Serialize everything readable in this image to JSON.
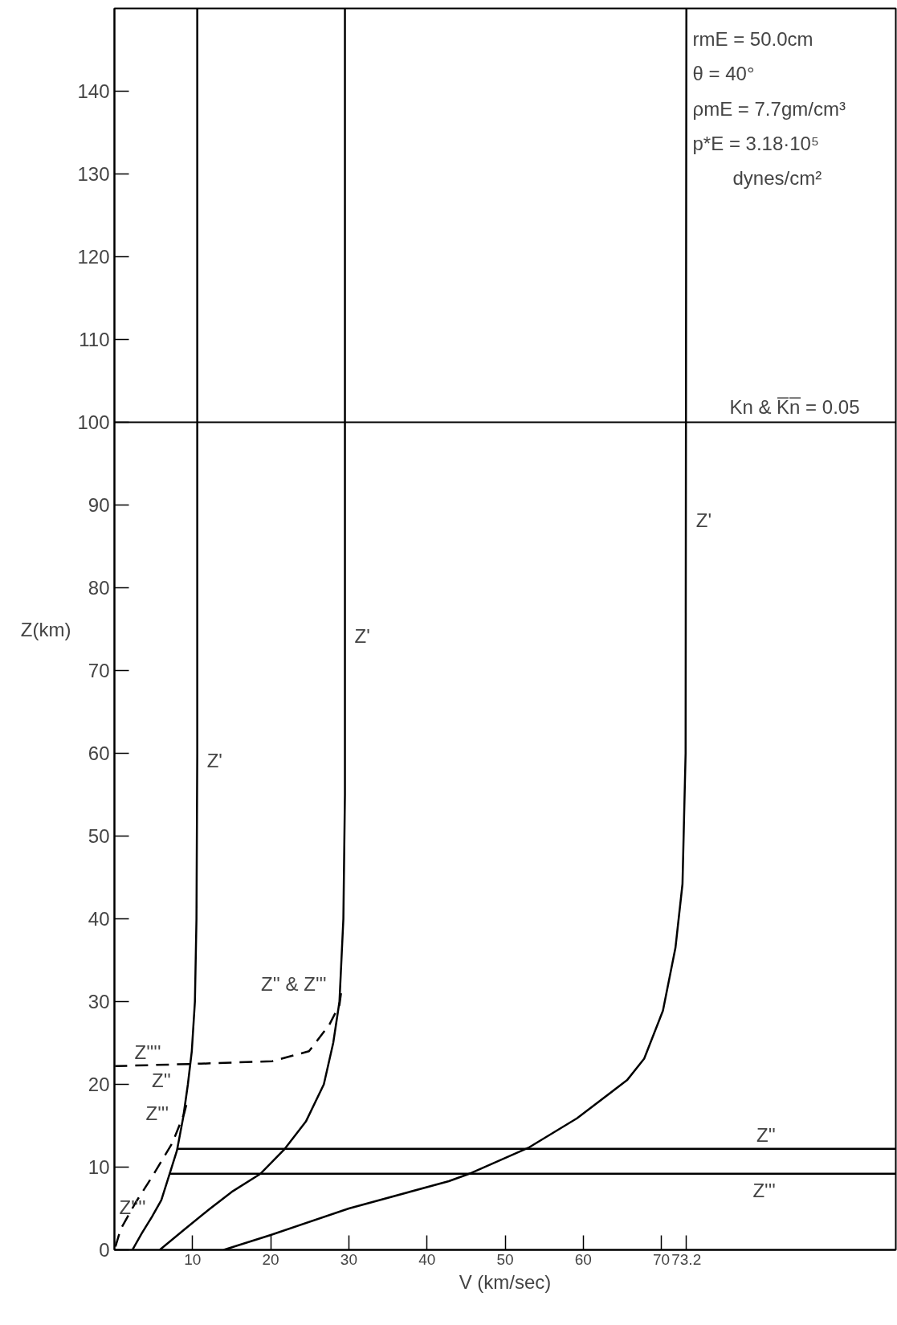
{
  "chart_data": {
    "type": "line",
    "xlabel": "V (km/sec)",
    "ylabel": "Z(km)",
    "xlim": [
      0,
      100
    ],
    "ylim": [
      0,
      150
    ],
    "xticks": [
      10,
      20,
      30,
      40,
      50,
      60,
      70,
      73.2
    ],
    "yticks": [
      0,
      10,
      20,
      30,
      40,
      50,
      60,
      70,
      80,
      90,
      100,
      110,
      120,
      130,
      140
    ],
    "grid": false,
    "line_style": "solid",
    "marker": "none",
    "series": [
      {
        "color": "#000000",
        "x": [
          2.3,
          3.5,
          4.8,
          6.0,
          7.0,
          8.0,
          8.8,
          9.4,
          9.9,
          10.3,
          10.5,
          10.6,
          10.6
        ],
        "values": [
          0,
          2,
          4,
          6,
          9,
          12,
          16,
          20,
          24,
          30,
          40,
          60,
          150
        ]
      },
      {
        "color": "#000000",
        "x": [
          5.8,
          9,
          12,
          15,
          18.7,
          21.8,
          24.5,
          26.8,
          28,
          28.8,
          29.3,
          29.5,
          29.5
        ],
        "values": [
          0,
          2.5,
          4.8,
          7,
          9.2,
          12.2,
          15.5,
          20,
          25,
          30,
          40,
          55,
          150
        ]
      },
      {
        "color": "#000000",
        "x": [
          14,
          20,
          30,
          42.8,
          45.7,
          53.1,
          59.2,
          65.6,
          67.8,
          70.2,
          71.8,
          72.7,
          73.1,
          73.2
        ],
        "values": [
          0,
          1.8,
          5.0,
          8.3,
          9.3,
          12.4,
          15.9,
          20.5,
          23.1,
          28.9,
          36.5,
          44.2,
          60,
          150
        ]
      },
      {
        "color": "#000000",
        "line_style": "dashed",
        "x": [
          29.0,
          28.8,
          27.5,
          24.9,
          20.2,
          11.1,
          0.1
        ],
        "values": [
          31,
          29.6,
          27.2,
          24.0,
          22.8,
          22.5,
          22.2
        ]
      },
      {
        "color": "#000000",
        "line_style": "dashed",
        "x": [
          9.2,
          8.9,
          7.4,
          4.8,
          2.7,
          0.8,
          0
        ],
        "values": [
          17.5,
          16.4,
          12.9,
          8.8,
          5.7,
          2.5,
          0
        ]
      },
      {
        "color": "#000000",
        "x": [
          8.1,
          100
        ],
        "values": [
          12.2,
          12.2
        ]
      },
      {
        "color": "#000000",
        "x": [
          7.0,
          100
        ],
        "values": [
          9.2,
          9.2
        ]
      }
    ],
    "ref_lines": [
      {
        "axis": "y",
        "value": 100,
        "color": "#000000"
      }
    ],
    "annotations": [
      {
        "text": "Z'",
        "x": 10.6,
        "y": 59
      },
      {
        "text": "Z'",
        "x": 29.5,
        "y": 74
      },
      {
        "text": "Z'",
        "x": 73.2,
        "y": 88
      },
      {
        "text": "Z'' & Z'''",
        "x": 29,
        "y": 32
      },
      {
        "text": "Z''",
        "x": 9.5,
        "y": 19
      },
      {
        "text": "Z'''",
        "x": 9.2,
        "y": 17.5
      },
      {
        "text": "Z''''",
        "x": 0,
        "y": 22.2
      },
      {
        "text": "Z''''",
        "x": 0,
        "y": 0
      },
      {
        "text": "Z''",
        "x": 91.3,
        "y": 12.2
      },
      {
        "text": "Z'''",
        "x": 91.3,
        "y": 9.2
      },
      "Kn & K̅n̅ = 0.05",
      "rmE = 50.0cm",
      "θ = 40°",
      "ρmE = 7.7gm/cm³",
      "p*E = 3.18·10⁵",
      "dynes/cm²"
    ]
  }
}
